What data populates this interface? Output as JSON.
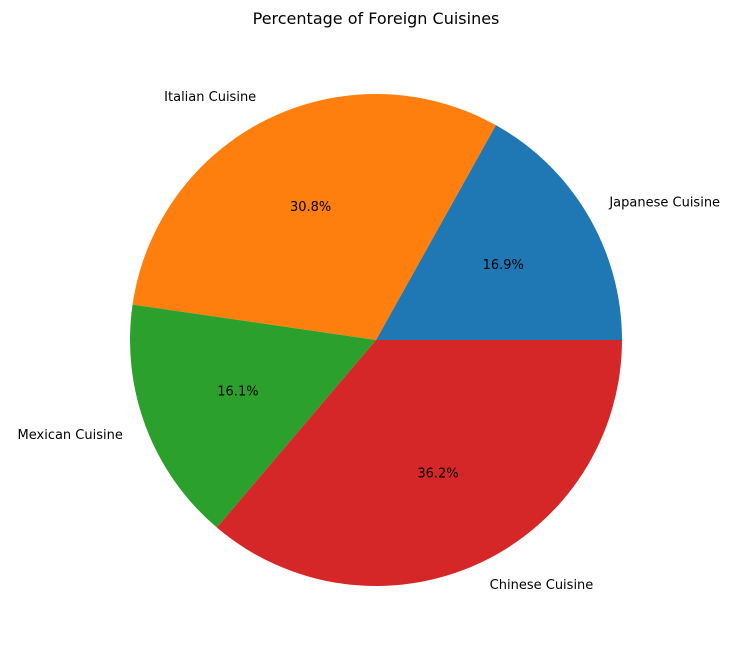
{
  "chart_data": {
    "type": "pie",
    "title": "Percentage of Foreign Cuisines",
    "start_angle_deg": 0,
    "direction": "counterclockwise",
    "autopct_format": "{:.1f}%",
    "slices": [
      {
        "label": "Japanese Cuisine",
        "value": 16.9,
        "color": "#1f77b4"
      },
      {
        "label": "Italian Cuisine",
        "value": 30.8,
        "color": "#ff7f0e"
      },
      {
        "label": "Mexican Cuisine",
        "value": 16.1,
        "color": "#2ca02c"
      },
      {
        "label": "Chinese Cuisine",
        "value": 36.2,
        "color": "#d62728"
      }
    ]
  }
}
